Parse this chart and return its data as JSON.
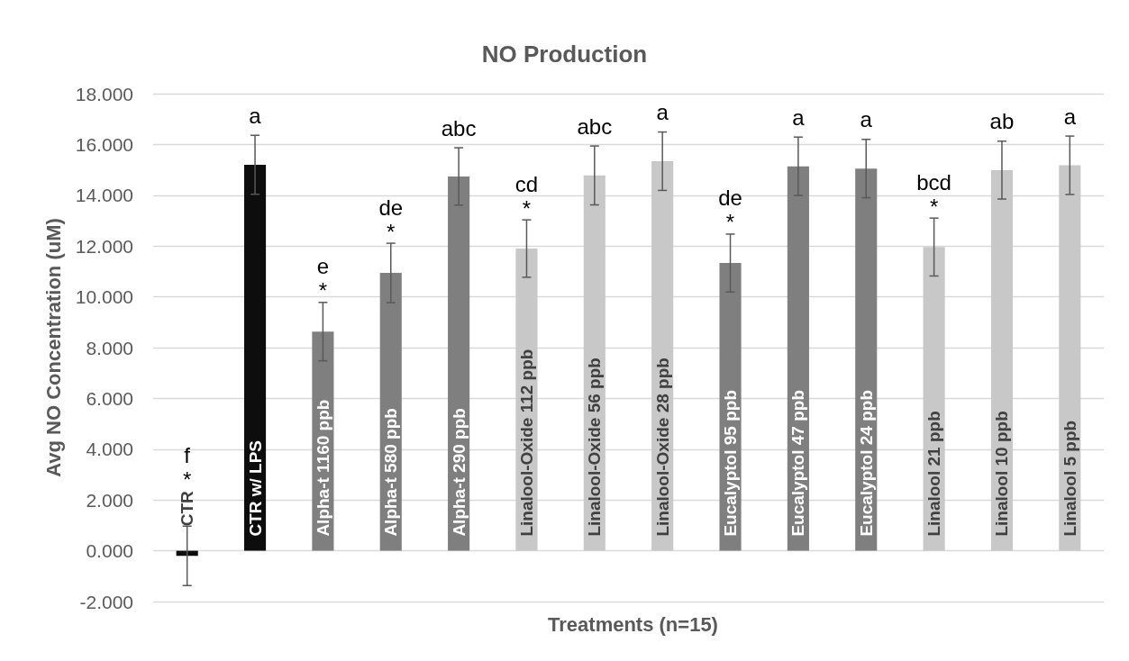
{
  "chart_data": {
    "type": "bar",
    "title": "NO Production",
    "xlabel": "Treatments (n=15)",
    "ylabel": "Avg NO Concentration (uM)",
    "categories": [
      "CTR",
      "CTR w/ LPS",
      "Alpha-t 1160 ppb",
      "Alpha-t 580 ppb",
      "Alpha-t 290 ppb",
      "Linalool-Oxide 112 ppb",
      "Linalool-Oxide 56 ppb",
      "Linalool-Oxide 28 ppb",
      "Eucalyptol 95 ppb",
      "Eucalyptol 47 ppb",
      "Eucalyptol 24 ppb",
      "Linalool 21 ppb",
      "Linalool 10 ppb",
      "Linalool 5 ppb"
    ],
    "values": [
      -0.2,
      15.2,
      8.63,
      10.94,
      14.74,
      11.9,
      14.78,
      15.34,
      11.33,
      15.14,
      15.05,
      11.96,
      14.99,
      15.18
    ],
    "errors": [
      1.17,
      1.16,
      1.15,
      1.17,
      1.13,
      1.13,
      1.16,
      1.15,
      1.14,
      1.15,
      1.15,
      1.14,
      1.14,
      1.15
    ],
    "colors": [
      "#0d0d0d",
      "#0d0d0d",
      "#7f7f7f",
      "#7f7f7f",
      "#7f7f7f",
      "#c8c8c8",
      "#c8c8c8",
      "#c8c8c8",
      "#7f7f7f",
      "#7f7f7f",
      "#7f7f7f",
      "#c8c8c8",
      "#c8c8c8",
      "#c8c8c8"
    ],
    "ylim": [
      -2,
      18
    ],
    "yticks": [
      {
        "value": -2,
        "label": "-2.000"
      },
      {
        "value": 0,
        "label": "0.000"
      },
      {
        "value": 2,
        "label": "2.000"
      },
      {
        "value": 4,
        "label": "4.000"
      },
      {
        "value": 6,
        "label": "6.000"
      },
      {
        "value": 8,
        "label": "8.000"
      },
      {
        "value": 10,
        "label": "10.000"
      },
      {
        "value": 12,
        "label": "12.000"
      },
      {
        "value": 14,
        "label": "14.000"
      },
      {
        "value": 16,
        "label": "16.000"
      },
      {
        "value": 18,
        "label": "18.000"
      }
    ],
    "grid": "y",
    "annotations": [
      {
        "text": "f",
        "x": "CTR",
        "y": 0.97
      },
      {
        "text": "*",
        "x": "CTR",
        "y": 0.97
      },
      {
        "text": "a",
        "x": "CTR w/ LPS",
        "y": 15.2
      },
      {
        "text": "e",
        "x": "Alpha-t 1160 ppb",
        "y": 8.63
      },
      {
        "text": "*",
        "x": "Alpha-t 1160 ppb",
        "y": 8.63
      },
      {
        "text": "de",
        "x": "Alpha-t 580 ppb",
        "y": 10.94
      },
      {
        "text": "*",
        "x": "Alpha-t 580 ppb",
        "y": 10.94
      },
      {
        "text": "abc",
        "x": "Alpha-t 290 ppb",
        "y": 14.74
      },
      {
        "text": "cd",
        "x": "Linalool-Oxide 112 ppb",
        "y": 11.9
      },
      {
        "text": "*",
        "x": "Linalool-Oxide 112 ppb",
        "y": 11.9
      },
      {
        "text": "abc",
        "x": "Linalool-Oxide 56 ppb",
        "y": 14.78
      },
      {
        "text": "a",
        "x": "Linalool-Oxide 28 ppb",
        "y": 15.34
      },
      {
        "text": "de",
        "x": "Eucalyptol 95 ppb",
        "y": 11.33
      },
      {
        "text": "*",
        "x": "Eucalyptol 95 ppb",
        "y": 11.33
      },
      {
        "text": "a",
        "x": "Eucalyptol 47 ppb",
        "y": 15.14
      },
      {
        "text": "a",
        "x": "Eucalyptol 24 ppb",
        "y": 15.05
      },
      {
        "text": "bcd",
        "x": "Linalool 21 ppb",
        "y": 11.96
      },
      {
        "text": "*",
        "x": "Linalool 21 ppb",
        "y": 11.96
      },
      {
        "text": "ab",
        "x": "Linalool 10 ppb",
        "y": 14.99
      },
      {
        "text": "a",
        "x": "Linalool 5 ppb",
        "y": 15.18
      }
    ]
  }
}
